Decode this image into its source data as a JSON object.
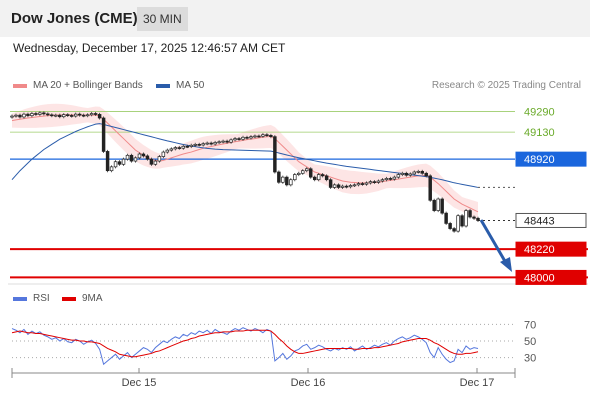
{
  "header": {
    "title": "Dow Jones (CME)",
    "timeframe": "30 MIN"
  },
  "datetime": "Wednesday, December 17, 2025 12:46:57 AM CET",
  "legend": {
    "ma20_label": "MA 20 + Bollinger Bands",
    "ma20_color": "#f08a8a",
    "ma50_label": "MA 50",
    "ma50_color": "#2a5caa",
    "credit": "Research © 2025 Trading Central"
  },
  "price_levels": [
    {
      "label": "49290",
      "kind": "resistance-minor",
      "color": "#6aaa2a"
    },
    {
      "label": "49130",
      "kind": "resistance-minor",
      "color": "#6aaa2a"
    },
    {
      "label": "48920",
      "kind": "pivot",
      "color": "#1a66dd"
    },
    {
      "label": "48443",
      "kind": "last-price",
      "color": "#333333"
    },
    {
      "label": "48220",
      "kind": "support",
      "color": "#e00000"
    },
    {
      "label": "48000",
      "kind": "support",
      "color": "#e00000"
    }
  ],
  "rsi_legend": {
    "rsi_label": "RSI",
    "rsi_color": "#5577dd",
    "ma_label": "9MA",
    "ma_color": "#e00000"
  },
  "rsi_axis": [
    "70",
    "50",
    "30"
  ],
  "x_axis": [
    "Dec 15",
    "Dec 16",
    "Dec 17"
  ],
  "chart_data": {
    "type": "candlestick",
    "price_ylim": [
      47980,
      49380
    ],
    "closes": [
      49255,
      49262,
      49248,
      49270,
      49258,
      49275,
      49268,
      49280,
      49272,
      49265,
      49258,
      49262,
      49250,
      49266,
      49260,
      49255,
      49270,
      49262,
      49258,
      49265,
      49275,
      49268,
      49240,
      48980,
      48830,
      48860,
      48900,
      48880,
      48920,
      48950,
      48905,
      48930,
      48960,
      48945,
      48920,
      48880,
      48905,
      48940,
      48975,
      48990,
      49000,
      49010,
      49005,
      49020,
      49018,
      49028,
      49035,
      49030,
      49040,
      49045,
      49038,
      49050,
      49055,
      49060,
      49052,
      49070,
      49080,
      49075,
      49090,
      49085,
      49095,
      49100,
      49098,
      49110,
      49105,
      49095,
      48820,
      48740,
      48780,
      48720,
      48760,
      48800,
      48810,
      48830,
      48845,
      48780,
      48760,
      48800,
      48790,
      48760,
      48700,
      48720,
      48700,
      48710,
      48705,
      48715,
      48720,
      48730,
      48725,
      48735,
      48745,
      48740,
      48750,
      48760,
      48770,
      48765,
      48780,
      48800,
      48810,
      48795,
      48805,
      48820,
      48825,
      48810,
      48790,
      48600,
      48520,
      48610,
      48500,
      48420,
      48380,
      48360,
      48480,
      48400,
      48520,
      48470,
      48460,
      48443
    ],
    "ma20": [
      49220,
      49225,
      49230,
      49235,
      49240,
      49244,
      49248,
      49252,
      49255,
      49258,
      49260,
      49262,
      49263,
      49264,
      49264,
      49264,
      49263,
      49262,
      49262,
      49262,
      49262,
      49262,
      49255,
      49230,
      49200,
      49170,
      49140,
      49110,
      49080,
      49050,
      49020,
      48990,
      48970,
      48950,
      48935,
      48920,
      48910,
      48905,
      48910,
      48920,
      48930,
      48940,
      48950,
      48960,
      48968,
      48975,
      48985,
      48995,
      49005,
      49012,
      49018,
      49025,
      49032,
      49038,
      49044,
      49050,
      49055,
      49060,
      49066,
      49072,
      49076,
      49080,
      49085,
      49090,
      49094,
      49096,
      49080,
      49050,
      49020,
      48990,
      48960,
      48930,
      48900,
      48880,
      48860,
      48840,
      48820,
      48810,
      48800,
      48790,
      48780,
      48770,
      48760,
      48750,
      48745,
      48740,
      48738,
      48736,
      48735,
      48735,
      48736,
      48738,
      48740,
      48745,
      48750,
      48755,
      48760,
      48765,
      48770,
      48775,
      48780,
      48785,
      48790,
      48792,
      48795,
      48780,
      48755,
      48730,
      48700,
      48670,
      48640,
      48610,
      48590,
      48570,
      48555,
      48540,
      48525,
      48510
    ],
    "ma50": [
      48760,
      48795,
      48830,
      48860,
      48890,
      48920,
      48945,
      48970,
      48995,
      49015,
      49035,
      49055,
      49075,
      49090,
      49105,
      49120,
      49135,
      49148,
      49160,
      49172,
      49182,
      49192,
      49196,
      49190,
      49182,
      49174,
      49166,
      49158,
      49150,
      49142,
      49134,
      49126,
      49118,
      49110,
      49102,
      49094,
      49086,
      49078,
      49070,
      49062,
      49055,
      49048,
      49041,
      49034,
      49028,
      49022,
      49017,
      49012,
      49008,
      49004,
      49001,
      48998,
      48996,
      48994,
      48993,
      48992,
      48991,
      48990,
      48989,
      48988,
      48987,
      48986,
      48985,
      48984,
      48983,
      48982,
      48976,
      48968,
      48960,
      48952,
      48945,
      48938,
      48931,
      48925,
      48919,
      48913,
      48907,
      48901,
      48895,
      48889,
      48884,
      48879,
      48874,
      48869,
      48864,
      48860,
      48856,
      48852,
      48848,
      48844,
      48840,
      48836,
      48832,
      48828,
      48824,
      48820,
      48816,
      48812,
      48808,
      48804,
      48800,
      48796,
      48792,
      48788,
      48784,
      48778,
      48772,
      48766,
      48760,
      48752,
      48744,
      48736,
      48730,
      48724,
      48718,
      48712,
      48706,
      48700
    ],
    "rsi_ylim": [
      15,
      85
    ],
    "rsi": [
      65,
      63,
      60,
      64,
      58,
      62,
      59,
      61,
      57,
      55,
      52,
      54,
      50,
      53,
      49,
      48,
      52,
      50,
      46,
      49,
      51,
      47,
      40,
      22,
      26,
      30,
      34,
      28,
      32,
      36,
      30,
      34,
      38,
      42,
      40,
      36,
      42,
      46,
      50,
      48,
      52,
      55,
      53,
      58,
      56,
      60,
      58,
      62,
      60,
      63,
      59,
      64,
      61,
      60,
      58,
      62,
      65,
      63,
      66,
      64,
      62,
      65,
      63,
      60,
      64,
      62,
      26,
      30,
      35,
      28,
      32,
      38,
      40,
      44,
      46,
      40,
      42,
      45,
      43,
      40,
      38,
      41,
      39,
      42,
      40,
      43,
      38,
      41,
      44,
      40,
      42,
      45,
      43,
      46,
      48,
      45,
      50,
      53,
      55,
      52,
      54,
      57,
      55,
      52,
      48,
      36,
      30,
      42,
      34,
      28,
      24,
      26,
      40,
      36,
      44,
      40,
      42,
      41
    ],
    "rsi_ma": [
      60,
      61,
      62,
      61,
      60,
      60,
      59,
      59,
      58,
      57,
      56,
      55,
      54,
      53,
      52,
      51,
      51,
      50,
      50,
      49,
      49,
      48,
      47,
      44,
      41,
      39,
      37,
      34,
      33,
      32,
      31,
      31,
      32,
      33,
      34,
      35,
      37,
      38,
      40,
      42,
      44,
      46,
      48,
      50,
      51,
      53,
      54,
      56,
      57,
      58,
      59,
      60,
      60,
      61,
      61,
      61,
      62,
      62,
      62,
      63,
      63,
      63,
      63,
      63,
      63,
      62,
      58,
      53,
      49,
      44,
      40,
      37,
      35,
      35,
      36,
      37,
      38,
      39,
      40,
      41,
      41,
      41,
      41,
      41,
      41,
      41,
      40,
      40,
      41,
      41,
      41,
      42,
      42,
      43,
      44,
      45,
      46,
      47,
      49,
      50,
      51,
      52,
      53,
      53,
      53,
      51,
      48,
      46,
      43,
      40,
      37,
      35,
      34,
      34,
      35,
      35,
      36,
      37
    ]
  }
}
